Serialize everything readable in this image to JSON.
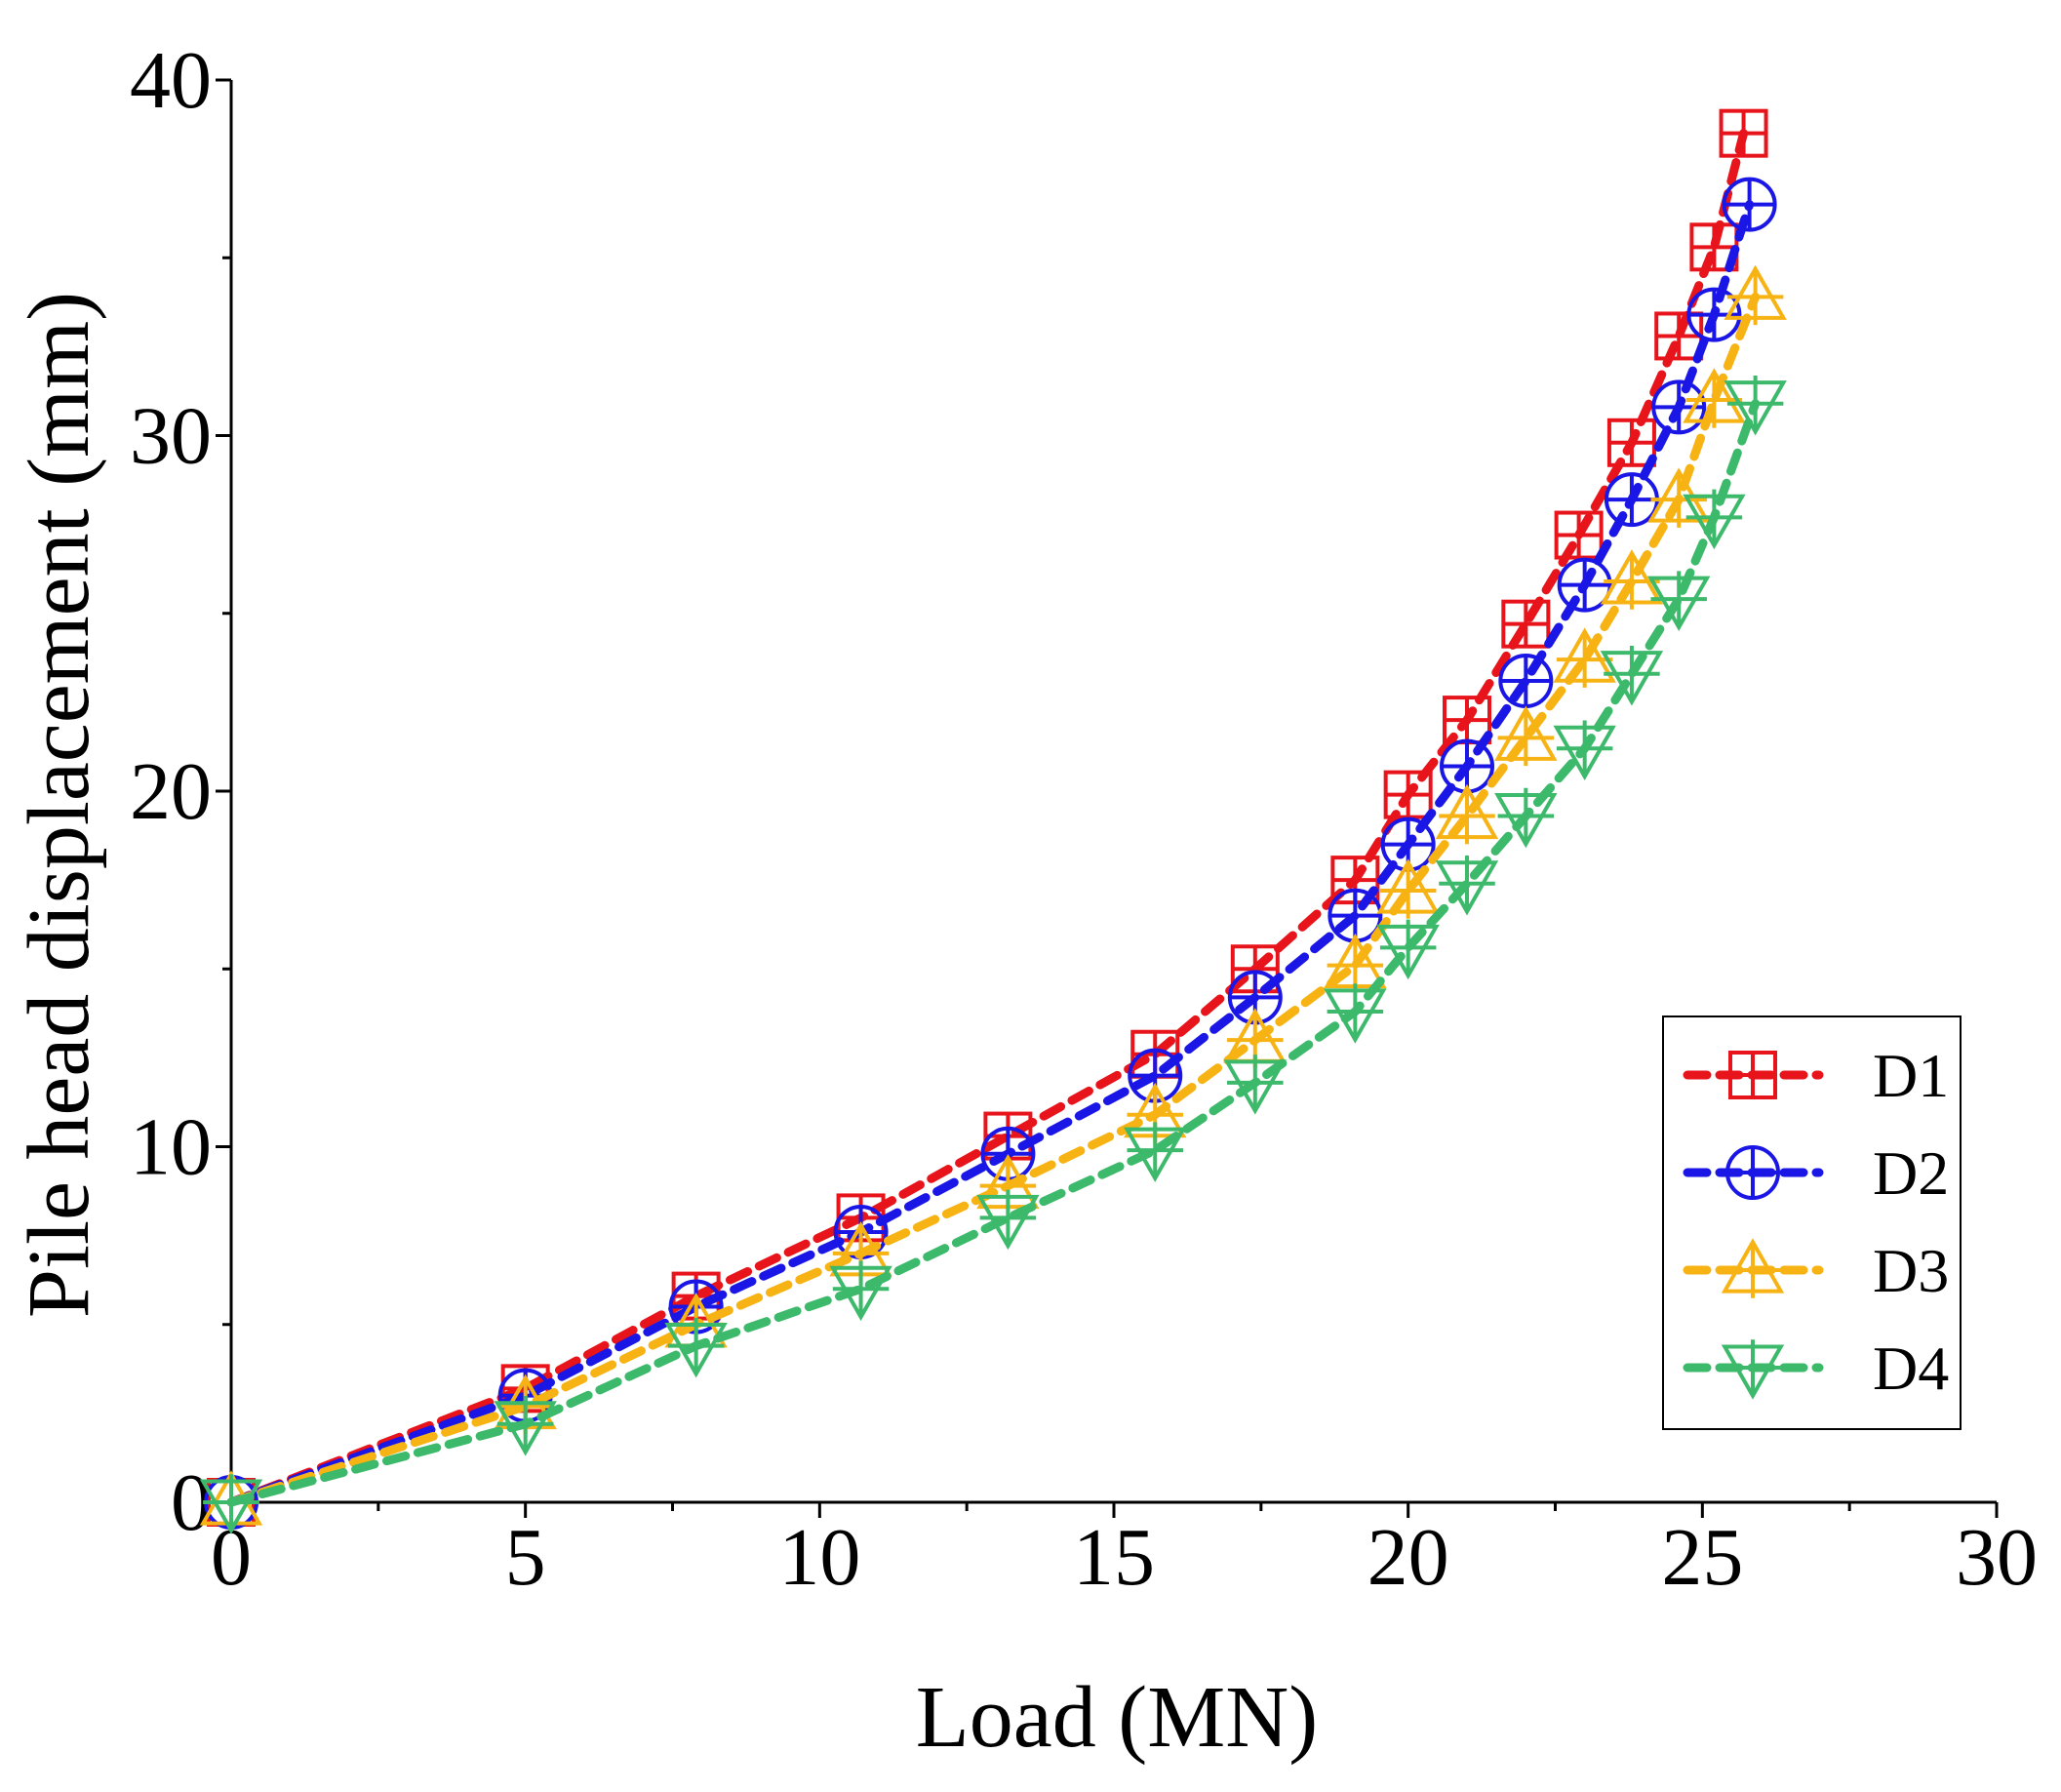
{
  "chart_data": {
    "type": "line",
    "title": "",
    "xlabel": "Load (MN)",
    "ylabel": "Pile head displacement (mm)",
    "xlim": [
      0,
      30
    ],
    "ylim": [
      0,
      40
    ],
    "xticks": [
      "0",
      "5",
      "10",
      "15",
      "20",
      "25",
      "30"
    ],
    "yticks": [
      "0",
      "10",
      "20",
      "30",
      "40"
    ],
    "grid": false,
    "legend_position": "bottom-right",
    "series": [
      {
        "name": "D1",
        "color": "#e8141b",
        "marker": "square-plus",
        "x": [
          0,
          5.0,
          7.9,
          10.7,
          13.2,
          15.7,
          17.4,
          19.1,
          20.0,
          21.0,
          22.0,
          22.9,
          23.8,
          24.6,
          25.2,
          25.7
        ],
        "y": [
          0,
          3.2,
          5.8,
          8.0,
          10.3,
          12.6,
          15.0,
          17.5,
          19.9,
          22.0,
          24.7,
          27.2,
          29.8,
          32.8,
          35.3,
          38.5
        ]
      },
      {
        "name": "D2",
        "color": "#1a16e6",
        "marker": "circle-plus",
        "x": [
          0,
          5.0,
          7.9,
          10.7,
          13.2,
          15.7,
          17.4,
          19.1,
          20.0,
          21.0,
          22.0,
          23.0,
          23.8,
          24.6,
          25.2,
          25.8
        ],
        "y": [
          0,
          3.0,
          5.5,
          7.6,
          9.8,
          12.0,
          14.2,
          16.5,
          18.5,
          20.7,
          23.1,
          25.8,
          28.2,
          30.8,
          33.4,
          36.5
        ]
      },
      {
        "name": "D3",
        "color": "#f7b313",
        "marker": "triangle-plus",
        "x": [
          0,
          5.0,
          7.9,
          10.7,
          13.2,
          15.7,
          17.4,
          19.1,
          20.0,
          21.0,
          22.0,
          23.0,
          23.8,
          24.6,
          25.2,
          25.9
        ],
        "y": [
          0,
          2.7,
          5.0,
          7.0,
          8.9,
          10.9,
          13.0,
          15.1,
          17.2,
          19.3,
          21.5,
          23.7,
          25.9,
          28.2,
          31.0,
          33.9
        ]
      },
      {
        "name": "D4",
        "color": "#3cb96a",
        "marker": "inverted-triangle-plus",
        "x": [
          0,
          5.0,
          7.9,
          10.7,
          13.2,
          15.7,
          17.4,
          19.1,
          20.0,
          21.0,
          22.0,
          23.0,
          23.8,
          24.6,
          25.2,
          25.9
        ],
        "y": [
          0,
          2.2,
          4.4,
          6.0,
          8.0,
          9.9,
          11.8,
          13.8,
          15.6,
          17.4,
          19.3,
          21.2,
          23.3,
          25.4,
          27.7,
          30.9
        ]
      }
    ]
  }
}
